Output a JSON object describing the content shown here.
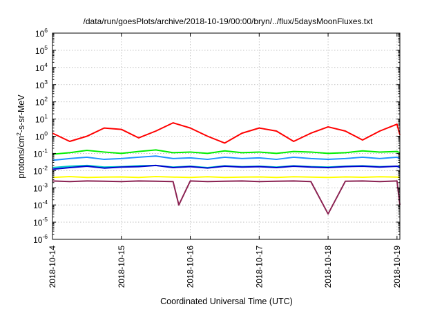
{
  "chart_data": {
    "type": "line",
    "title": "/data/run/goesPlots/archive/2018-10-19/00:00/bryn/../flux/5daysMoonFluxes.txt",
    "xlabel": "Coordinated Universal Time (UTC)",
    "ylabel": {
      "pre": "protons/cm",
      "sup": "2",
      "post": "-s-sr-MeV"
    },
    "y_scale": "log",
    "ylim": [
      1e-06,
      1000000.0
    ],
    "y_ticks": [
      {
        "exp": -6,
        "label_base": "10",
        "label_exp": "-6"
      },
      {
        "exp": -5,
        "label_base": "10",
        "label_exp": "-5"
      },
      {
        "exp": -4,
        "label_base": "10",
        "label_exp": "-4"
      },
      {
        "exp": -3,
        "label_base": "10",
        "label_exp": "-3"
      },
      {
        "exp": -2,
        "label_base": "10",
        "label_exp": "-2"
      },
      {
        "exp": -1,
        "label_base": "10",
        "label_exp": "-1"
      },
      {
        "exp": 0,
        "label_base": "10",
        "label_exp": "0"
      },
      {
        "exp": 1,
        "label_base": "10",
        "label_exp": "1"
      },
      {
        "exp": 2,
        "label_base": "10",
        "label_exp": "2"
      },
      {
        "exp": 3,
        "label_base": "10",
        "label_exp": "3"
      },
      {
        "exp": 4,
        "label_base": "10",
        "label_exp": "4"
      },
      {
        "exp": 5,
        "label_base": "10",
        "label_exp": "5"
      },
      {
        "exp": 6,
        "label_base": "10",
        "label_exp": "6"
      }
    ],
    "xlim": [
      "2018-10-14",
      "2018-10-19 01:00"
    ],
    "x_ticks": [
      "2018-10-14",
      "2018-10-15",
      "2018-10-16",
      "2018-10-17",
      "2018-10-18",
      "2018-10-19"
    ],
    "grid": true,
    "series": [
      {
        "color": "#ff0000",
        "x": [
          "2018-10-14 00:00",
          "2018-10-14 06:00",
          "2018-10-14 12:00",
          "2018-10-14 18:00",
          "2018-10-15 00:00",
          "2018-10-15 06:00",
          "2018-10-15 12:00",
          "2018-10-15 18:00",
          "2018-10-16 00:00",
          "2018-10-16 06:00",
          "2018-10-16 12:00",
          "2018-10-16 18:00",
          "2018-10-17 00:00",
          "2018-10-17 06:00",
          "2018-10-17 12:00",
          "2018-10-17 18:00",
          "2018-10-18 00:00",
          "2018-10-18 06:00",
          "2018-10-18 12:00",
          "2018-10-18 18:00",
          "2018-10-19 00:00",
          "2018-10-19 01:00"
        ],
        "y": [
          1.5,
          0.5,
          1.0,
          3.0,
          2.5,
          0.8,
          2.0,
          6.0,
          3.0,
          1.0,
          0.4,
          1.5,
          3.0,
          2.0,
          0.5,
          1.5,
          3.5,
          2.0,
          0.6,
          2.0,
          5.0,
          1.2
        ]
      },
      {
        "color": "#00ee00",
        "x": [
          "2018-10-14 00:00",
          "2018-10-14 06:00",
          "2018-10-14 12:00",
          "2018-10-14 18:00",
          "2018-10-15 00:00",
          "2018-10-15 06:00",
          "2018-10-15 12:00",
          "2018-10-15 18:00",
          "2018-10-16 00:00",
          "2018-10-16 06:00",
          "2018-10-16 12:00",
          "2018-10-16 18:00",
          "2018-10-17 00:00",
          "2018-10-17 06:00",
          "2018-10-17 12:00",
          "2018-10-17 18:00",
          "2018-10-18 00:00",
          "2018-10-18 06:00",
          "2018-10-18 12:00",
          "2018-10-18 18:00",
          "2018-10-19 00:00",
          "2018-10-19 01:00"
        ],
        "y": [
          0.09,
          0.11,
          0.15,
          0.12,
          0.1,
          0.13,
          0.16,
          0.11,
          0.12,
          0.1,
          0.14,
          0.11,
          0.12,
          0.1,
          0.13,
          0.12,
          0.1,
          0.11,
          0.14,
          0.12,
          0.13,
          0.11
        ]
      },
      {
        "color": "#1e90ff",
        "x": [
          "2018-10-14 00:00",
          "2018-10-14 06:00",
          "2018-10-14 12:00",
          "2018-10-14 18:00",
          "2018-10-15 00:00",
          "2018-10-15 06:00",
          "2018-10-15 12:00",
          "2018-10-15 18:00",
          "2018-10-16 00:00",
          "2018-10-16 06:00",
          "2018-10-16 12:00",
          "2018-10-16 18:00",
          "2018-10-17 00:00",
          "2018-10-17 06:00",
          "2018-10-17 12:00",
          "2018-10-17 18:00",
          "2018-10-18 00:00",
          "2018-10-18 06:00",
          "2018-10-18 12:00",
          "2018-10-18 18:00",
          "2018-10-19 00:00",
          "2018-10-19 01:00"
        ],
        "y": [
          0.04,
          0.05,
          0.06,
          0.045,
          0.05,
          0.06,
          0.07,
          0.05,
          0.055,
          0.045,
          0.06,
          0.05,
          0.055,
          0.045,
          0.06,
          0.05,
          0.045,
          0.05,
          0.06,
          0.05,
          0.06,
          0.05
        ]
      },
      {
        "color": "#00c8c8",
        "x": [
          "2018-10-14 00:00",
          "2018-10-14 06:00",
          "2018-10-14 12:00",
          "2018-10-14 18:00",
          "2018-10-15 00:00",
          "2018-10-15 06:00",
          "2018-10-15 12:00",
          "2018-10-15 18:00",
          "2018-10-16 00:00",
          "2018-10-16 06:00",
          "2018-10-16 12:00",
          "2018-10-16 18:00",
          "2018-10-17 00:00",
          "2018-10-17 06:00",
          "2018-10-17 12:00",
          "2018-10-17 18:00",
          "2018-10-18 00:00",
          "2018-10-18 06:00",
          "2018-10-18 12:00",
          "2018-10-18 18:00",
          "2018-10-19 00:00",
          "2018-10-19 01:00"
        ],
        "y": [
          0.015,
          0.018,
          0.02,
          0.016,
          0.017,
          0.019,
          0.02,
          0.016,
          0.018,
          0.015,
          0.019,
          0.017,
          0.018,
          0.016,
          0.019,
          0.017,
          0.016,
          0.018,
          0.019,
          0.017,
          0.018,
          0.017
        ]
      },
      {
        "color": "#0000cd",
        "x": [
          "2018-10-14 00:00",
          "2018-10-14 06:00",
          "2018-10-14 12:00",
          "2018-10-14 18:00",
          "2018-10-15 00:00",
          "2018-10-15 06:00",
          "2018-10-15 12:00",
          "2018-10-15 18:00",
          "2018-10-16 00:00",
          "2018-10-16 06:00",
          "2018-10-16 12:00",
          "2018-10-16 18:00",
          "2018-10-17 00:00",
          "2018-10-17 06:00",
          "2018-10-17 12:00",
          "2018-10-17 18:00",
          "2018-10-18 00:00",
          "2018-10-18 06:00",
          "2018-10-18 12:00",
          "2018-10-18 18:00",
          "2018-10-19 00:00",
          "2018-10-19 01:00"
        ],
        "y": [
          0.012,
          0.015,
          0.018,
          0.014,
          0.016,
          0.017,
          0.02,
          0.015,
          0.017,
          0.014,
          0.018,
          0.016,
          0.017,
          0.015,
          0.018,
          0.016,
          0.015,
          0.017,
          0.018,
          0.016,
          0.018,
          0.015
        ]
      },
      {
        "color": "#ffff00",
        "x": [
          "2018-10-14 00:00",
          "2018-10-14 06:00",
          "2018-10-14 12:00",
          "2018-10-14 18:00",
          "2018-10-15 00:00",
          "2018-10-15 06:00",
          "2018-10-15 12:00",
          "2018-10-15 18:00",
          "2018-10-16 00:00",
          "2018-10-16 06:00",
          "2018-10-16 12:00",
          "2018-10-16 18:00",
          "2018-10-17 00:00",
          "2018-10-17 06:00",
          "2018-10-17 12:00",
          "2018-10-17 18:00",
          "2018-10-18 00:00",
          "2018-10-18 06:00",
          "2018-10-18 12:00",
          "2018-10-18 18:00",
          "2018-10-19 00:00",
          "2018-10-19 01:00"
        ],
        "y": [
          0.004,
          0.0045,
          0.004,
          0.0042,
          0.0043,
          0.004,
          0.0045,
          0.0042,
          0.004,
          0.0044,
          0.004,
          0.0042,
          0.0043,
          0.004,
          0.0044,
          0.0042,
          0.004,
          0.0043,
          0.0041,
          0.0044,
          0.0042,
          0.004
        ]
      },
      {
        "color": "#8b2252",
        "x": [
          "2018-10-14 00:00",
          "2018-10-14 06:00",
          "2018-10-14 12:00",
          "2018-10-14 18:00",
          "2018-10-15 00:00",
          "2018-10-15 06:00",
          "2018-10-15 12:00",
          "2018-10-15 18:00",
          "2018-10-15 20:00",
          "2018-10-16 00:00",
          "2018-10-16 06:00",
          "2018-10-16 12:00",
          "2018-10-16 18:00",
          "2018-10-17 00:00",
          "2018-10-17 06:00",
          "2018-10-17 12:00",
          "2018-10-17 18:00",
          "2018-10-18 00:00",
          "2018-10-18 06:00",
          "2018-10-18 12:00",
          "2018-10-18 18:00",
          "2018-10-19 00:00",
          "2018-10-19 01:00"
        ],
        "y": [
          0.0025,
          0.0023,
          0.0025,
          0.0024,
          0.0023,
          0.0025,
          0.0024,
          0.0023,
          0.0001,
          0.0025,
          0.0023,
          0.0024,
          0.0025,
          0.0023,
          0.0024,
          0.0025,
          0.0023,
          3e-05,
          0.0024,
          0.0025,
          0.0023,
          0.0025,
          0.0001
        ]
      }
    ]
  }
}
